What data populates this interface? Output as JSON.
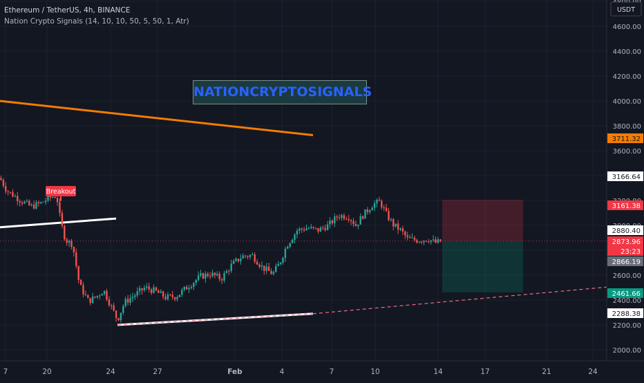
{
  "header": {
    "symbol_line": "Ethereum / TetherUS, 4h, BINANCE",
    "indicator_line": "Nation Crypto Signals  (14, 10, 10, 50, 5, 50, 1, Atr)"
  },
  "watermark": "NATIONCRYPTOSIGNALS",
  "annotations": {
    "breakout": "Breakout"
  },
  "colors": {
    "background": "#131722",
    "bull": "#26a69a",
    "bear": "#ef5350",
    "resistance": "#f57c00",
    "support": "#ffffff",
    "watermark_text": "#2962ff"
  },
  "price_axis": {
    "currency": "USDT",
    "ticks": [
      "4800.00",
      "4600.00",
      "4400.00",
      "4200.00",
      "4000.00",
      "3800.00",
      "3600.00",
      "3400.00",
      "3200.00",
      "3000.00",
      "2800.00",
      "2600.00",
      "2400.00",
      "2200.00",
      "2000.00"
    ]
  },
  "price_tags": {
    "resistance": "3711.32",
    "high": "3166.64",
    "stop": "3161.38",
    "prev_close": "2880.40",
    "last": "2873.96",
    "countdown": "23:23",
    "low": "2866.19",
    "target": "2461.66",
    "support": "2288.38"
  },
  "time_axis": [
    "7",
    "20",
    "24",
    "27",
    "Feb",
    "4",
    "7",
    "10",
    "14",
    "17",
    "21",
    "24"
  ],
  "chart_data": {
    "type": "candlestick",
    "symbol": "ETHUSDT",
    "interval": "4h",
    "exchange": "BINANCE",
    "ylim": [
      1950,
      4850
    ],
    "close_path": [
      {
        "x": 0,
        "y": 3380
      },
      {
        "x": 10,
        "y": 3280
      },
      {
        "x": 30,
        "y": 3200
      },
      {
        "x": 45,
        "y": 3150
      },
      {
        "x": 60,
        "y": 3180
      },
      {
        "x": 70,
        "y": 3220
      },
      {
        "x": 82,
        "y": 3240
      },
      {
        "x": 88,
        "y": 3020
      },
      {
        "x": 95,
        "y": 2880
      },
      {
        "x": 105,
        "y": 2850
      },
      {
        "x": 115,
        "y": 2520
      },
      {
        "x": 128,
        "y": 2390
      },
      {
        "x": 140,
        "y": 2430
      },
      {
        "x": 150,
        "y": 2480
      },
      {
        "x": 160,
        "y": 2360
      },
      {
        "x": 170,
        "y": 2240
      },
      {
        "x": 180,
        "y": 2380
      },
      {
        "x": 195,
        "y": 2440
      },
      {
        "x": 210,
        "y": 2500
      },
      {
        "x": 225,
        "y": 2470
      },
      {
        "x": 240,
        "y": 2420
      },
      {
        "x": 255,
        "y": 2430
      },
      {
        "x": 270,
        "y": 2500
      },
      {
        "x": 290,
        "y": 2590
      },
      {
        "x": 305,
        "y": 2610
      },
      {
        "x": 320,
        "y": 2570
      },
      {
        "x": 335,
        "y": 2680
      },
      {
        "x": 350,
        "y": 2750
      },
      {
        "x": 365,
        "y": 2760
      },
      {
        "x": 380,
        "y": 2660
      },
      {
        "x": 395,
        "y": 2610
      },
      {
        "x": 405,
        "y": 2700
      },
      {
        "x": 415,
        "y": 2840
      },
      {
        "x": 430,
        "y": 2960
      },
      {
        "x": 445,
        "y": 2980
      },
      {
        "x": 460,
        "y": 2960
      },
      {
        "x": 475,
        "y": 3000
      },
      {
        "x": 490,
        "y": 3080
      },
      {
        "x": 505,
        "y": 3070
      },
      {
        "x": 515,
        "y": 3000
      },
      {
        "x": 525,
        "y": 3080
      },
      {
        "x": 540,
        "y": 3170
      },
      {
        "x": 550,
        "y": 3190
      },
      {
        "x": 560,
        "y": 3080
      },
      {
        "x": 570,
        "y": 3000
      },
      {
        "x": 580,
        "y": 2960
      },
      {
        "x": 590,
        "y": 2890
      },
      {
        "x": 605,
        "y": 2880
      },
      {
        "x": 620,
        "y": 2890
      },
      {
        "x": 630,
        "y": 2860
      },
      {
        "x": 640,
        "y": 2874
      }
    ],
    "trendlines": [
      {
        "name": "resistance",
        "from": [
          0,
          4000
        ],
        "to": [
          453,
          3725
        ],
        "color": "#f57c00"
      },
      {
        "name": "breakout-support",
        "from": [
          0,
          2985
        ],
        "to": [
          168,
          3055
        ],
        "color": "#ffffff"
      },
      {
        "name": "lower-support",
        "from": [
          170,
          2200
        ],
        "to": [
          453,
          2290
        ],
        "extend_to": [
          880,
          2505
        ],
        "color": "#ffffff"
      }
    ],
    "position": {
      "entry": 2873.96,
      "stop": 3161.38,
      "target": 2461.66,
      "x_range": [
        640,
        757
      ]
    },
    "breakout_marker": {
      "x": 88,
      "price": 3240
    }
  }
}
